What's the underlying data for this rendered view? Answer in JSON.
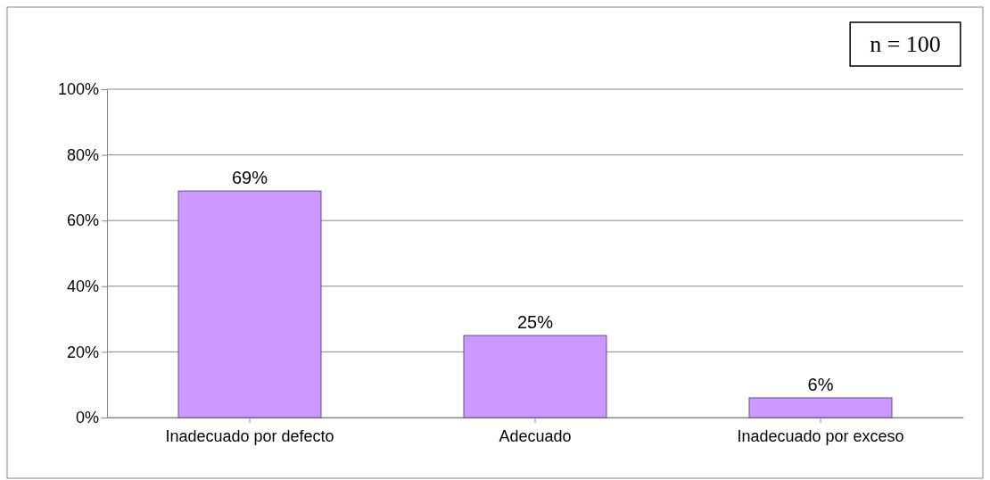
{
  "chart_data": {
    "type": "bar",
    "categories": [
      "Inadecuado por defecto",
      "Adecuado",
      "Inadecuado por exceso"
    ],
    "values": [
      69,
      25,
      6
    ],
    "color": "#cc99ff",
    "value_labels": [
      "69%",
      "25%",
      "6%"
    ],
    "ylim": [
      0,
      100
    ],
    "yticks": [
      {
        "value": 0,
        "label": "0%"
      },
      {
        "value": 20,
        "label": "20%"
      },
      {
        "value": 40,
        "label": "40%"
      },
      {
        "value": 60,
        "label": "60%"
      },
      {
        "value": 80,
        "label": "80%"
      },
      {
        "value": 100,
        "label": "100%"
      }
    ],
    "grid": "y",
    "annotations": [
      "n = 100"
    ]
  }
}
